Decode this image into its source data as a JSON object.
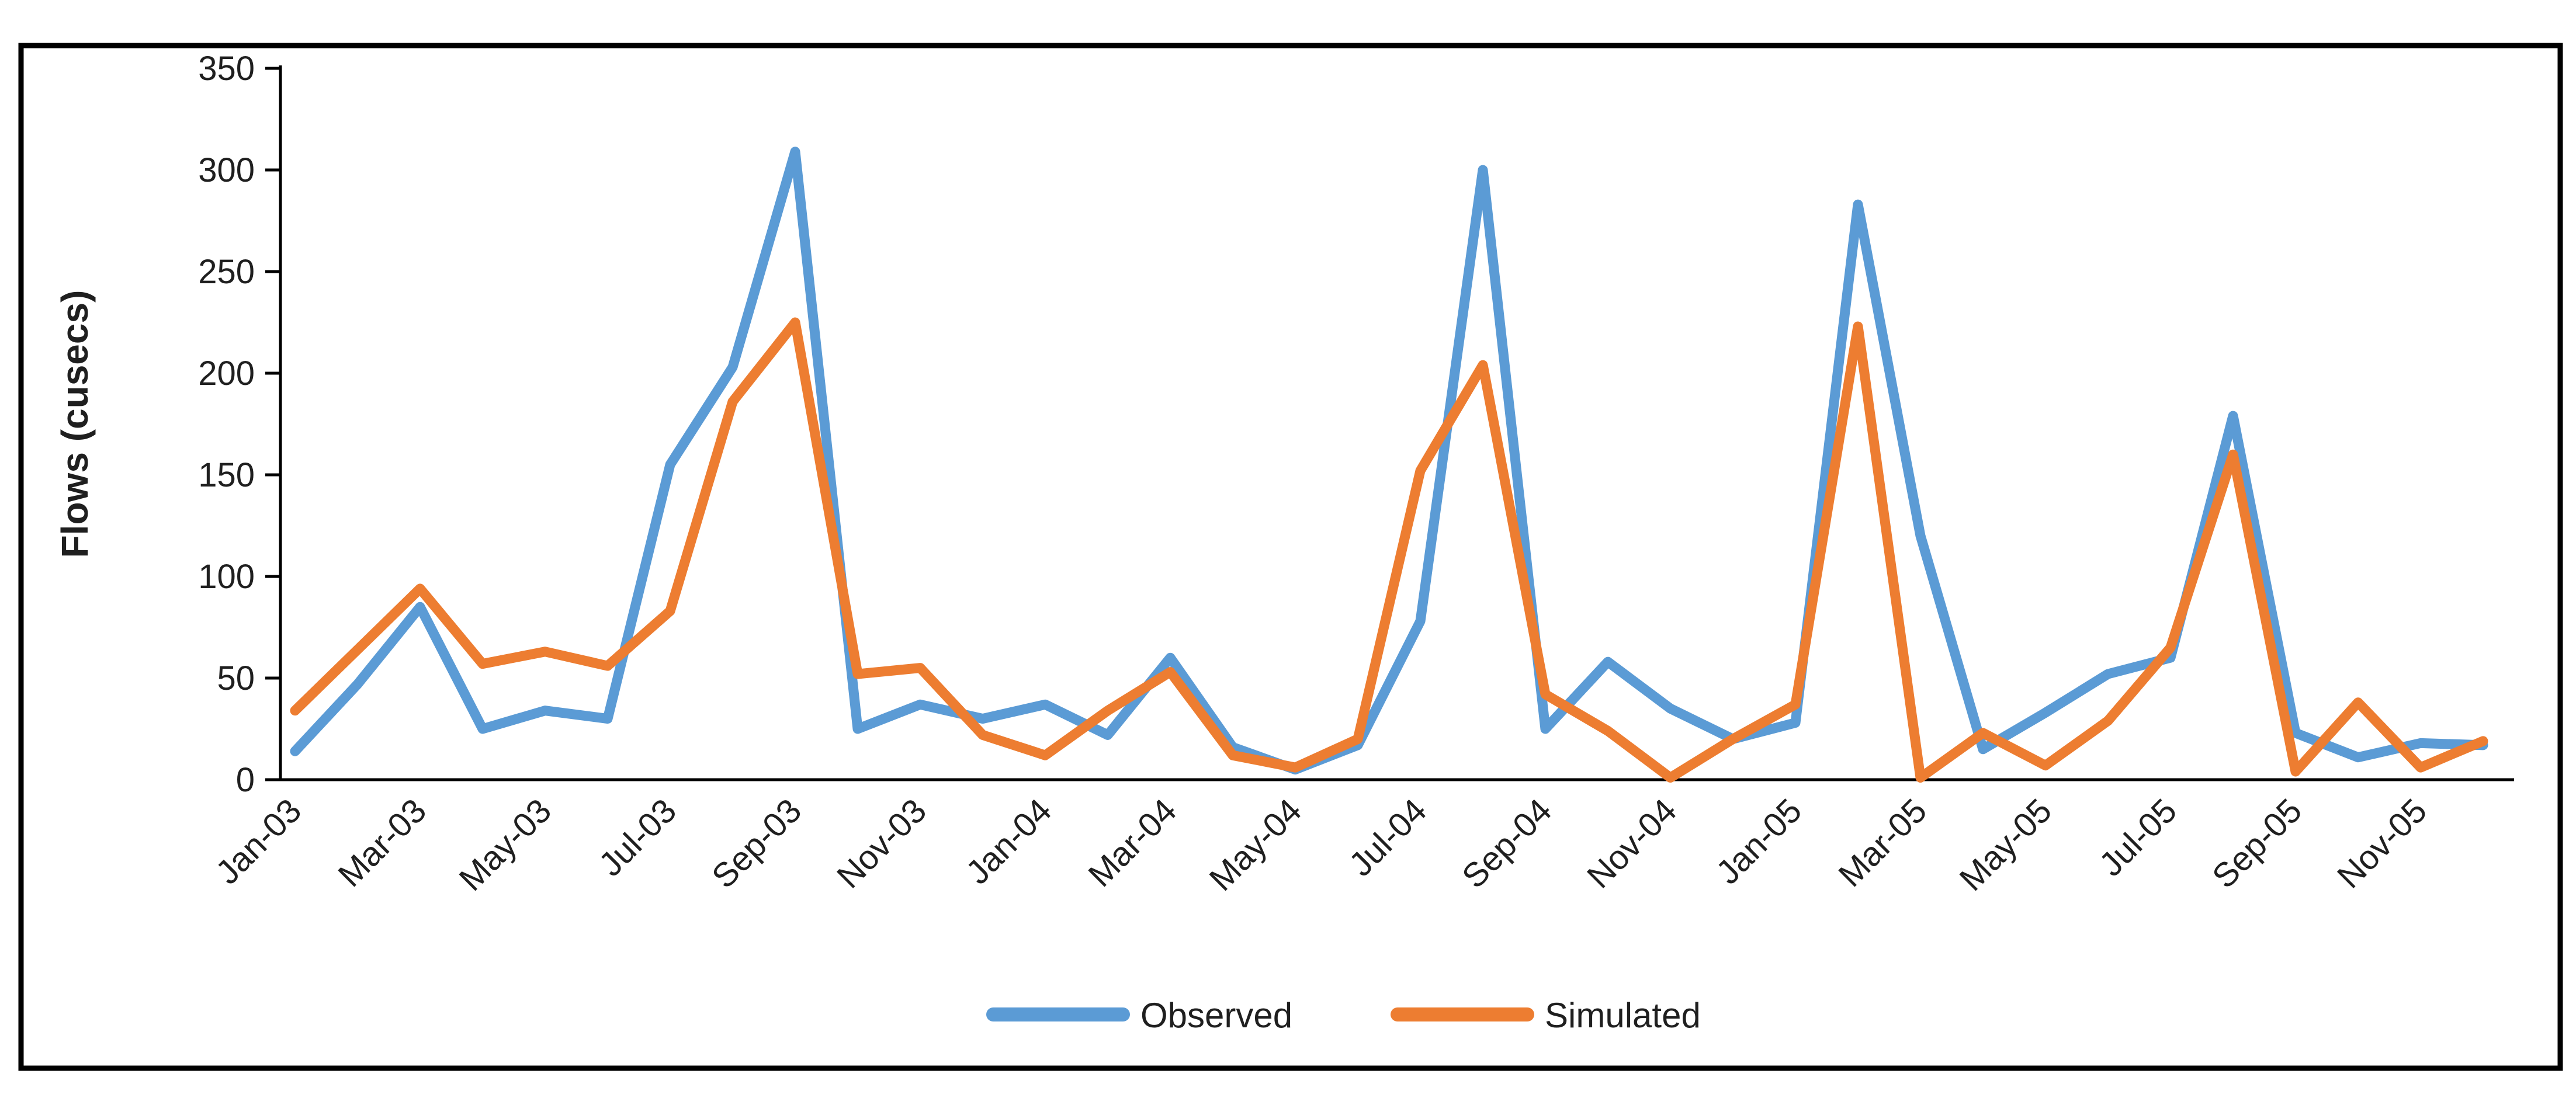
{
  "figure": {
    "background": "#ffffff",
    "border_color": "#000000",
    "axis_color": "#000000",
    "text_color": "#1f1f1f"
  },
  "chart_data": {
    "type": "line",
    "title": "",
    "xlabel": "",
    "ylabel": "Flows (cusecs)",
    "ylim": [
      0,
      350
    ],
    "ytick_step": 50,
    "yticks": [
      0,
      50,
      100,
      150,
      200,
      250,
      300,
      350
    ],
    "grid": false,
    "legend_position": "bottom-center",
    "x_label_every": 2,
    "x_label_rotation_deg": -45,
    "categories": [
      "Jan-03",
      "Feb-03",
      "Mar-03",
      "Apr-03",
      "May-03",
      "Jun-03",
      "Jul-03",
      "Aug-03",
      "Sep-03",
      "Oct-03",
      "Nov-03",
      "Dec-03",
      "Jan-04",
      "Feb-04",
      "Mar-04",
      "Apr-04",
      "May-04",
      "Jun-04",
      "Jul-04",
      "Aug-04",
      "Sep-04",
      "Oct-04",
      "Nov-04",
      "Dec-04",
      "Jan-05",
      "Feb-05",
      "Mar-05",
      "Apr-05",
      "May-05",
      "Jun-05",
      "Jul-05",
      "Aug-05",
      "Sep-05",
      "Oct-05",
      "Nov-05",
      "Dec-05"
    ],
    "visible_x_tick_labels": [
      "Jan-03",
      "Mar-03",
      "May-03",
      "Jul-03",
      "Sep-03",
      "Nov-03",
      "Jan-04",
      "Mar-04",
      "May-04",
      "Jul-04",
      "Sep-04",
      "Nov-04",
      "Jan-05",
      "Mar-05",
      "May-05",
      "Jul-05",
      "Sep-05",
      "Nov-05"
    ],
    "series": [
      {
        "name": "Observed",
        "color": "#5B9BD5",
        "values": [
          14,
          47,
          85,
          25,
          34,
          30,
          155,
          203,
          309,
          25,
          37,
          30,
          37,
          22,
          60,
          16,
          5,
          17,
          78,
          300,
          25,
          58,
          35,
          20,
          28,
          283,
          120,
          15,
          33,
          52,
          60,
          179,
          23,
          11,
          18,
          17
        ]
      },
      {
        "name": "Simulated",
        "color": "#ED7D31",
        "values": [
          34,
          64,
          94,
          57,
          63,
          56,
          83,
          186,
          225,
          52,
          55,
          22,
          12,
          34,
          53,
          12,
          6,
          20,
          152,
          204,
          42,
          24,
          1,
          20,
          37,
          223,
          1,
          23,
          7,
          29,
          65,
          160,
          4,
          38,
          6,
          19
        ]
      }
    ]
  }
}
